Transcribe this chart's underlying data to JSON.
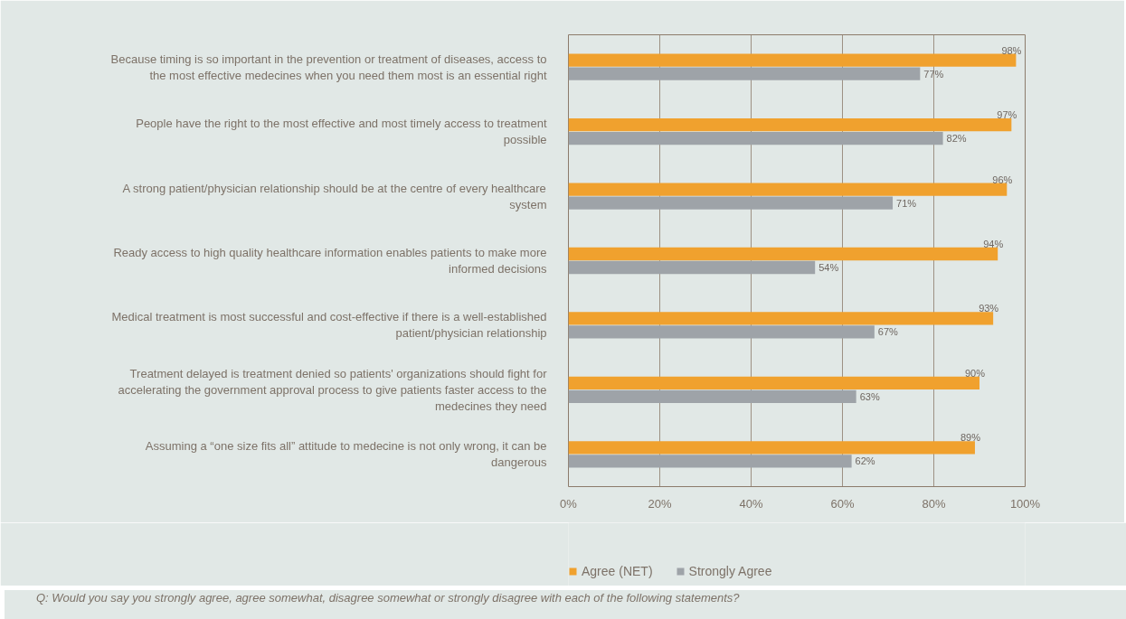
{
  "chart_data": {
    "type": "bar",
    "orientation": "horizontal",
    "categories": [
      "Because timing is so important in the prevention or treatment of diseases, access to the most effective medecines when you need them most is an essential right",
      "People have the right to the most effective and most timely access to treatment possible",
      "A strong patient/physician relationship should be at the centre of every healthcare system",
      "Ready access to high quality healthcare information enables patients to make more informed decisions",
      "Medical treatment is most successful and cost-effective if there is a well-established patient/physician relationship",
      "Treatment delayed is treatment denied so patients' organizations should fight for accelerating the government approval process to give patients faster access to the medecines they need",
      "Assuming a “one size fits all” attitude to medecine is not only wrong, it can be dangerous"
    ],
    "series": [
      {
        "name": "Agree (NET)",
        "color": "#f0a12e",
        "values": [
          98,
          97,
          96,
          94,
          93,
          90,
          89
        ],
        "value_labels": [
          "98%",
          "97%",
          "96%",
          "94%",
          "93%",
          "90%",
          "89%"
        ]
      },
      {
        "name": "Strongly Agree",
        "color": "#9ea3a8",
        "values": [
          77,
          82,
          71,
          54,
          67,
          63,
          62
        ],
        "value_labels": [
          "77%",
          "82%",
          "71%",
          "54%",
          "67%",
          "63%",
          "62%"
        ]
      }
    ],
    "xlim": [
      0,
      100
    ],
    "xticks": [
      {
        "value": 0,
        "label": "0%"
      },
      {
        "value": 20,
        "label": "20%"
      },
      {
        "value": 40,
        "label": "40%"
      },
      {
        "value": 60,
        "label": "60%"
      },
      {
        "value": 80,
        "label": "80%"
      },
      {
        "value": 100,
        "label": "100%"
      }
    ],
    "grid": "x",
    "legend": "bottom",
    "annotations": [
      "Q: Would you say you strongly agree, agree somewhat, disagree somewhat or strongly disagree with each of the following statements?"
    ]
  }
}
